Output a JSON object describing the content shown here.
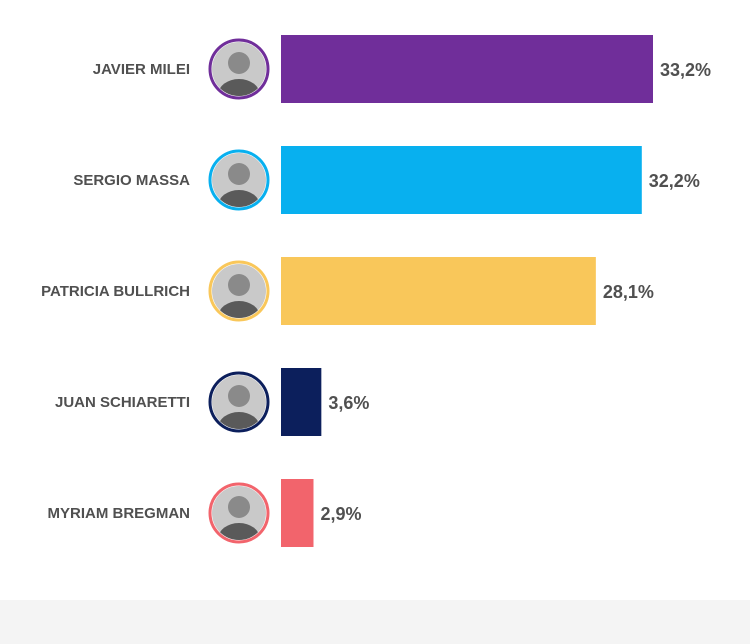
{
  "chart_data": {
    "type": "bar",
    "orientation": "horizontal",
    "categories": [
      "JAVIER MILEI",
      "SERGIO MASSA",
      "PATRICIA BULLRICH",
      "JUAN SCHIARETTI",
      "MYRIAM BREGMAN"
    ],
    "values": [
      33.2,
      32.2,
      28.1,
      3.6,
      2.9
    ],
    "value_labels": [
      "33,2%",
      "32,2%",
      "28,1%",
      "3,6%",
      "2,9%"
    ],
    "colors": [
      "#702e9a",
      "#08b0ef",
      "#f9c75a",
      "#0c1f5c",
      "#f2646c"
    ],
    "avatar_icons": [
      "candidate-portrait",
      "candidate-portrait",
      "candidate-portrait",
      "candidate-portrait",
      "candidate-portrait"
    ],
    "unit": "%",
    "xlim": [
      0,
      33.2
    ],
    "grid": false,
    "legend": "none",
    "title": "",
    "xlabel": "",
    "ylabel": ""
  }
}
